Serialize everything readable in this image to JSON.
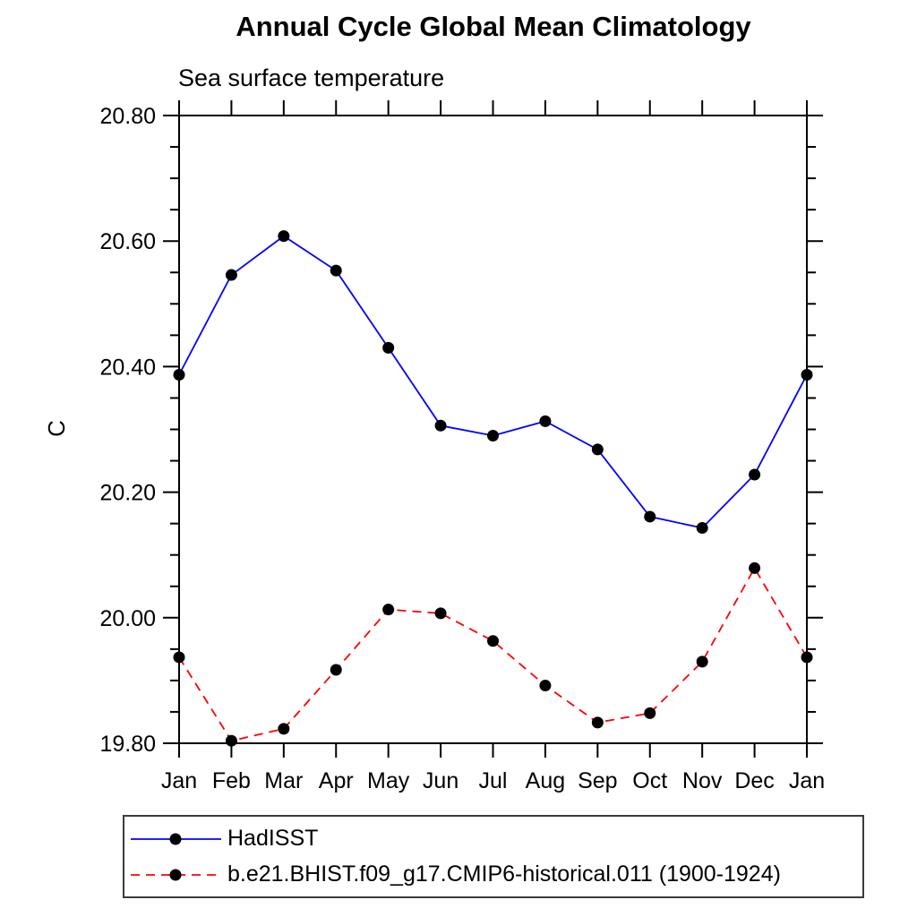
{
  "page": {
    "background": "#ffffff",
    "axis_color": "#000000",
    "text_color": "#000000"
  },
  "chart_data": {
    "type": "line",
    "title": "Annual Cycle Global Mean Climatology",
    "subtitle": "Sea surface temperature",
    "ylabel": "C",
    "xlabel": "",
    "categories": [
      "Jan",
      "Feb",
      "Mar",
      "Apr",
      "May",
      "Jun",
      "Jul",
      "Aug",
      "Sep",
      "Oct",
      "Nov",
      "Dec",
      "Jan"
    ],
    "ylim": [
      19.8,
      20.8
    ],
    "y_major_tick_values": [
      19.8,
      20.0,
      20.2,
      20.4,
      20.6,
      20.8
    ],
    "y_major_tick_labels": [
      "19.80",
      "20.00",
      "20.20",
      "20.40",
      "20.60",
      "20.80"
    ],
    "y_minor_tick_step": 0.05,
    "grid": false,
    "legend_position": "bottom-left-box",
    "series": [
      {
        "name": "HadISST",
        "line_color": "#0000ff",
        "line_style": "solid",
        "marker": "circle",
        "marker_color": "#000000",
        "values": [
          20.387,
          20.546,
          20.608,
          20.553,
          20.43,
          20.306,
          20.29,
          20.313,
          20.268,
          20.161,
          20.143,
          20.228,
          20.387
        ]
      },
      {
        "name": "b.e21.BHIST.f09_g17.CMIP6-historical.011 (1900-1924)",
        "line_color": "#ff0000",
        "line_style": "dashed",
        "marker": "circle",
        "marker_color": "#000000",
        "values": [
          19.937,
          19.804,
          19.823,
          19.917,
          20.013,
          20.007,
          19.963,
          19.892,
          19.833,
          19.848,
          19.93,
          20.079,
          19.937
        ]
      }
    ]
  }
}
